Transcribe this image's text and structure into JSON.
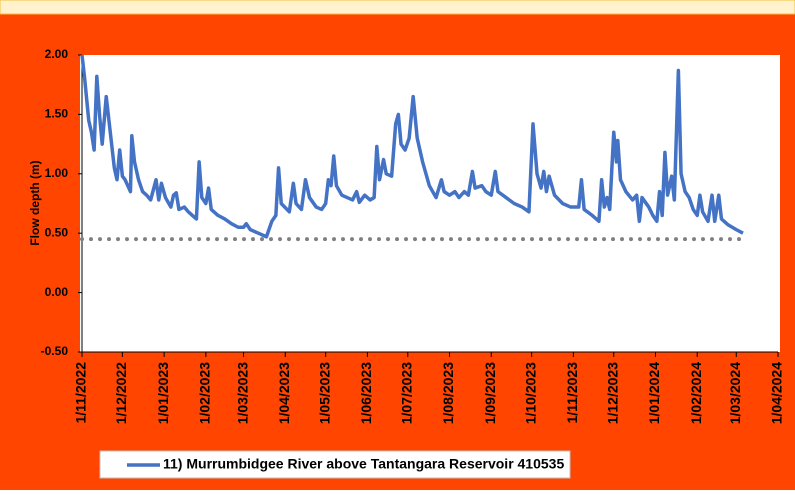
{
  "chart_data": {
    "type": "line",
    "y_label": "Flow depth (m)",
    "ylim": [
      -0.5,
      2.0
    ],
    "yticks": [
      {
        "value": -0.5,
        "label": "-0.50"
      },
      {
        "value": 0,
        "label": "0.00"
      },
      {
        "value": 0.5,
        "label": "0.50"
      },
      {
        "value": 1,
        "label": "1.00"
      },
      {
        "value": 1.5,
        "label": "1.50"
      },
      {
        "value": 2,
        "label": "2.00"
      }
    ],
    "xlim": [
      "2022-11-01",
      "2024-04-01"
    ],
    "xticks": [
      {
        "value": "2022-11-01",
        "label": "1/11/2022"
      },
      {
        "value": "2022-12-01",
        "label": "1/12/2022"
      },
      {
        "value": "2023-01-01",
        "label": "1/01/2023"
      },
      {
        "value": "2023-02-01",
        "label": "1/02/2023"
      },
      {
        "value": "2023-03-01",
        "label": "1/03/2023"
      },
      {
        "value": "2023-04-01",
        "label": "1/04/2023"
      },
      {
        "value": "2023-05-01",
        "label": "1/05/2023"
      },
      {
        "value": "2023-06-01",
        "label": "1/06/2023"
      },
      {
        "value": "2023-07-01",
        "label": "1/07/2023"
      },
      {
        "value": "2023-08-01",
        "label": "1/08/2023"
      },
      {
        "value": "2023-09-01",
        "label": "1/09/2023"
      },
      {
        "value": "2023-10-01",
        "label": "1/10/2023"
      },
      {
        "value": "2023-11-01",
        "label": "1/11/2023"
      },
      {
        "value": "2023-12-01",
        "label": "1/12/2023"
      },
      {
        "value": "2024-01-01",
        "label": "1/01/2024"
      },
      {
        "value": "2024-02-01",
        "label": "1/02/2024"
      },
      {
        "value": "2024-03-01",
        "label": "1/03/2024"
      },
      {
        "value": "2024-04-01",
        "label": "1/04/2024"
      }
    ],
    "reference_line": {
      "y": 0.45,
      "x": [
        "2022-11-01",
        "2024-03-06"
      ],
      "color": "#808080"
    },
    "x": [
      "2022-11-01",
      "2022-11-03",
      "2022-11-06",
      "2022-11-08",
      "2022-11-10",
      "2022-11-12",
      "2022-11-14",
      "2022-11-16",
      "2022-11-19",
      "2022-11-22",
      "2022-11-25",
      "2022-11-27",
      "2022-11-29",
      "2022-12-01",
      "2022-12-03",
      "2022-12-05",
      "2022-12-07",
      "2022-12-08",
      "2022-12-10",
      "2022-12-13",
      "2022-12-16",
      "2022-12-19",
      "2022-12-22",
      "2022-12-26",
      "2022-12-28",
      "2022-12-30",
      "2023-01-02",
      "2023-01-06",
      "2023-01-08",
      "2023-01-10",
      "2023-01-12",
      "2023-01-16",
      "2023-01-19",
      "2023-01-22",
      "2023-01-25",
      "2023-01-27",
      "2023-01-29",
      "2023-02-01",
      "2023-02-03",
      "2023-02-05",
      "2023-02-10",
      "2023-02-15",
      "2023-02-20",
      "2023-02-25",
      "2023-03-01",
      "2023-03-03",
      "2023-03-06",
      "2023-03-12",
      "2023-03-18",
      "2023-03-22",
      "2023-03-25",
      "2023-03-27",
      "2023-03-29",
      "2023-04-04",
      "2023-04-07",
      "2023-04-09",
      "2023-04-13",
      "2023-04-16",
      "2023-04-19",
      "2023-04-24",
      "2023-04-28",
      "2023-05-01",
      "2023-05-03",
      "2023-05-05",
      "2023-05-07",
      "2023-05-09",
      "2023-05-13",
      "2023-05-17",
      "2023-05-21",
      "2023-05-24",
      "2023-05-26",
      "2023-05-30",
      "2023-06-03",
      "2023-06-06",
      "2023-06-08",
      "2023-06-10",
      "2023-06-13",
      "2023-06-15",
      "2023-06-19",
      "2023-06-22",
      "2023-06-24",
      "2023-06-26",
      "2023-06-29",
      "2023-07-02",
      "2023-07-05",
      "2023-07-08",
      "2023-07-12",
      "2023-07-17",
      "2023-07-22",
      "2023-07-26",
      "2023-07-28",
      "2023-08-01",
      "2023-08-05",
      "2023-08-08",
      "2023-08-12",
      "2023-08-15",
      "2023-08-18",
      "2023-08-20",
      "2023-08-25",
      "2023-08-28",
      "2023-09-01",
      "2023-09-04",
      "2023-09-06",
      "2023-09-12",
      "2023-09-18",
      "2023-09-24",
      "2023-09-29",
      "2023-10-02",
      "2023-10-05",
      "2023-10-08",
      "2023-10-10",
      "2023-10-12",
      "2023-10-14",
      "2023-10-18",
      "2023-10-24",
      "2023-10-30",
      "2023-11-05",
      "2023-11-07",
      "2023-11-09",
      "2023-11-15",
      "2023-11-20",
      "2023-11-22",
      "2023-11-24",
      "2023-11-26",
      "2023-11-28",
      "2023-12-01",
      "2023-12-03",
      "2023-12-04",
      "2023-12-06",
      "2023-12-10",
      "2023-12-15",
      "2023-12-18",
      "2023-12-20",
      "2023-12-22",
      "2023-12-27",
      "2023-12-30",
      "2024-01-02",
      "2024-01-04",
      "2024-01-06",
      "2024-01-08",
      "2024-01-10",
      "2024-01-13",
      "2024-01-15",
      "2024-01-18",
      "2024-01-20",
      "2024-01-23",
      "2024-01-26",
      "2024-01-29",
      "2024-02-01",
      "2024-02-03",
      "2024-02-05",
      "2024-02-09",
      "2024-02-12",
      "2024-02-14",
      "2024-02-17",
      "2024-02-19",
      "2024-02-24",
      "2024-03-01",
      "2024-03-06"
    ],
    "series": [
      {
        "name": "11) Murrumbidgee River above Tantangara Reservoir 410535",
        "color": "#4472c4",
        "values": [
          2.0,
          1.8,
          1.45,
          1.35,
          1.2,
          1.82,
          1.5,
          1.25,
          1.65,
          1.35,
          1.05,
          0.95,
          1.2,
          0.98,
          0.95,
          0.9,
          0.85,
          1.32,
          1.1,
          0.95,
          0.85,
          0.82,
          0.78,
          0.95,
          0.78,
          0.92,
          0.8,
          0.72,
          0.82,
          0.84,
          0.7,
          0.72,
          0.68,
          0.65,
          0.62,
          1.1,
          0.8,
          0.75,
          0.88,
          0.7,
          0.65,
          0.62,
          0.58,
          0.55,
          0.55,
          0.58,
          0.53,
          0.5,
          0.47,
          0.6,
          0.65,
          1.05,
          0.75,
          0.68,
          0.92,
          0.75,
          0.7,
          0.95,
          0.8,
          0.72,
          0.7,
          0.75,
          0.95,
          0.9,
          1.15,
          0.9,
          0.82,
          0.8,
          0.78,
          0.85,
          0.76,
          0.82,
          0.78,
          0.8,
          1.23,
          0.95,
          1.12,
          1.0,
          0.98,
          1.42,
          1.5,
          1.25,
          1.2,
          1.3,
          1.65,
          1.3,
          1.1,
          0.9,
          0.8,
          0.95,
          0.85,
          0.82,
          0.85,
          0.8,
          0.85,
          0.82,
          1.02,
          0.88,
          0.9,
          0.85,
          0.82,
          1.02,
          0.85,
          0.8,
          0.75,
          0.72,
          0.68,
          1.42,
          1.0,
          0.88,
          1.02,
          0.85,
          0.98,
          0.82,
          0.75,
          0.72,
          0.72,
          0.95,
          0.7,
          0.65,
          0.6,
          0.95,
          0.72,
          0.8,
          0.7,
          1.35,
          1.1,
          1.28,
          0.95,
          0.85,
          0.78,
          0.82,
          0.6,
          0.8,
          0.72,
          0.65,
          0.6,
          0.85,
          0.65,
          1.18,
          0.82,
          0.98,
          0.78,
          1.87,
          1.0,
          0.85,
          0.8,
          0.7,
          0.65,
          0.82,
          0.68,
          0.6,
          0.82,
          0.6,
          0.82,
          0.62,
          0.57,
          0.53,
          0.5
        ]
      }
    ]
  }
}
